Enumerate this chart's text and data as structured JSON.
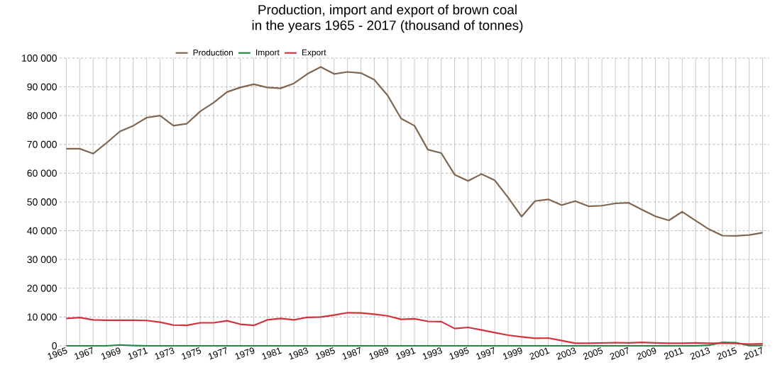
{
  "chart_data": {
    "type": "line",
    "title": "Production, import and export of brown coal",
    "subtitle": "in the years 1965 - 2017 (thousand of tonnes)",
    "categories": [
      "1965",
      null,
      "1967",
      null,
      "1969",
      null,
      "1971",
      null,
      "1973",
      null,
      "1975",
      null,
      "1977",
      null,
      "1979",
      null,
      "1981",
      null,
      "1983",
      null,
      "1985",
      null,
      "1987",
      null,
      "1989",
      null,
      "1991",
      null,
      "1993",
      null,
      "1995",
      null,
      "1997",
      null,
      "1999",
      null,
      "2001",
      null,
      "2003",
      null,
      "2005",
      null,
      "2007",
      null,
      "2009",
      null,
      "2011",
      null,
      "2013",
      null,
      "2015",
      null,
      "2017"
    ],
    "series": [
      {
        "name": "Production",
        "color": "#7f6650",
        "values": [
          68500,
          68500,
          66800,
          70500,
          74500,
          76500,
          79300,
          80000,
          76500,
          77200,
          81500,
          84500,
          88200,
          89800,
          90900,
          89800,
          89500,
          91200,
          94500,
          96900,
          94500,
          95200,
          94800,
          92500,
          87000,
          79000,
          76500,
          68200,
          67000,
          59500,
          57300,
          59700,
          57500,
          51500,
          44900,
          50300,
          50900,
          48900,
          50300,
          48500,
          48700,
          49500,
          49700,
          47300,
          45000,
          43600,
          46600,
          43500,
          40500,
          38300,
          38200,
          38500,
          39300
        ]
      },
      {
        "name": "Import",
        "color": "#1e8a4a",
        "values": [
          0,
          0,
          0,
          0,
          300,
          100,
          0,
          0,
          0,
          0,
          0,
          0,
          0,
          0,
          0,
          0,
          0,
          0,
          0,
          0,
          0,
          0,
          0,
          0,
          0,
          0,
          0,
          0,
          0,
          0,
          0,
          0,
          0,
          0,
          0,
          0,
          0,
          0,
          0,
          0,
          0,
          0,
          0,
          0,
          0,
          0,
          0,
          0,
          200,
          1200,
          1100,
          100,
          100
        ]
      },
      {
        "name": "Export",
        "color": "#d2323c",
        "values": [
          9500,
          9800,
          9000,
          8900,
          8900,
          8900,
          8800,
          8200,
          7200,
          7100,
          8000,
          8000,
          8700,
          7500,
          7100,
          9000,
          9500,
          9000,
          9900,
          10000,
          10700,
          11500,
          11400,
          11000,
          10400,
          9200,
          9400,
          8500,
          8400,
          6000,
          6400,
          5500,
          4600,
          3700,
          3100,
          2600,
          2700,
          1800,
          900,
          900,
          1000,
          1100,
          1000,
          1200,
          1000,
          900,
          900,
          1000,
          900,
          900,
          800,
          600,
          700
        ]
      }
    ],
    "ylim": [
      0,
      100000
    ],
    "yticks": [
      0,
      {
        "value": 10000,
        "label": "10 000"
      },
      {
        "value": 20000,
        "label": "20 000"
      },
      {
        "value": 30000,
        "label": "30 000"
      },
      {
        "value": 40000,
        "label": "40 000"
      },
      {
        "value": 50000,
        "label": "50 000"
      },
      {
        "value": 60000,
        "label": "60 000"
      },
      {
        "value": 70000,
        "label": "70 000"
      },
      {
        "value": 80000,
        "label": "80 000"
      },
      {
        "value": 90000,
        "label": "90 000"
      },
      {
        "value": 100000,
        "label": "100 000"
      }
    ],
    "grid": true,
    "legend": "top",
    "marker": "none",
    "line_style": "solid"
  }
}
